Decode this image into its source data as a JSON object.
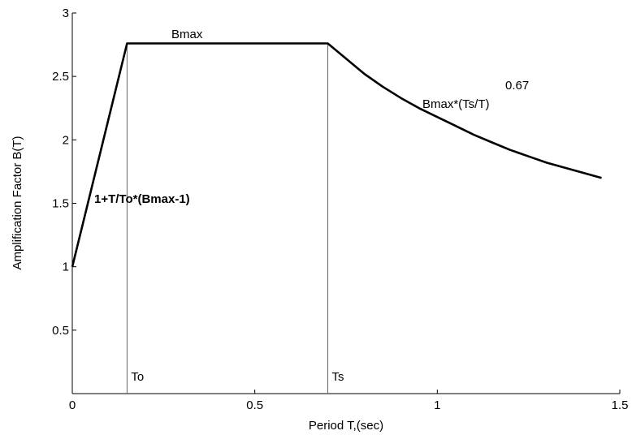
{
  "chart_data": {
    "type": "line",
    "title": "",
    "xlabel": "Period T,(sec)",
    "ylabel": "Amplification Factor B(T)",
    "xlim": [
      0,
      1.5
    ],
    "ylim": [
      0,
      3
    ],
    "x_ticks": [
      0,
      0.5,
      1,
      1.5
    ],
    "x_tick_labels": [
      "0",
      "0.5",
      "1",
      "1.5"
    ],
    "y_ticks": [
      0.5,
      1,
      1.5,
      2,
      2.5,
      3
    ],
    "y_tick_labels": [
      "0.5",
      "1",
      "1.5",
      "2",
      "2.5",
      "3"
    ],
    "grid": false,
    "series": [
      {
        "x": [
          0,
          0.15,
          0.7,
          0.75,
          0.8,
          0.85,
          0.9,
          0.95,
          1.0,
          1.05,
          1.1,
          1.15,
          1.2,
          1.25,
          1.3,
          1.35,
          1.4,
          1.45
        ],
        "y": [
          1.0,
          2.76,
          2.76,
          2.64,
          2.52,
          2.42,
          2.33,
          2.25,
          2.18,
          2.11,
          2.04,
          1.98,
          1.92,
          1.87,
          1.82,
          1.78,
          1.74,
          1.7
        ]
      }
    ],
    "vertical_lines": [
      {
        "x": 0.15,
        "label": "To"
      },
      {
        "x": 0.7,
        "label": "Ts"
      }
    ],
    "annotations": {
      "plateau": "Bmax",
      "rising": "1+T/To*(Bmax-1)",
      "falling": "Bmax*(Ts/T)",
      "exponent": "0.67"
    }
  }
}
